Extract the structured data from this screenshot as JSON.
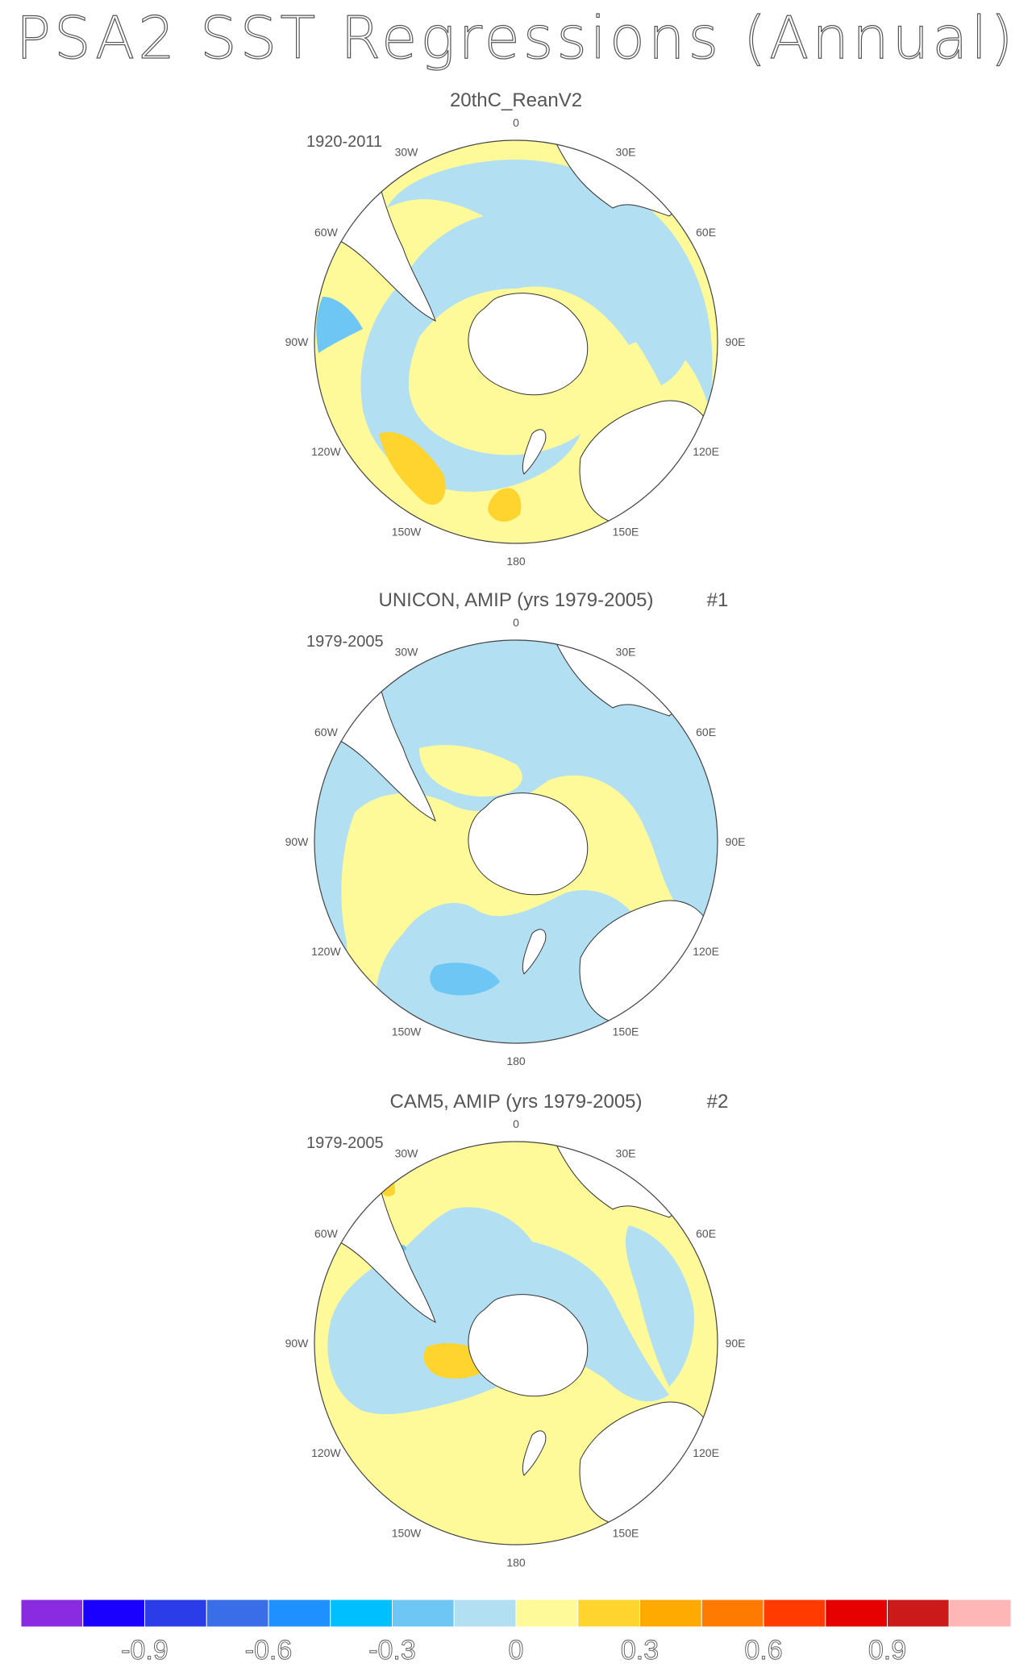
{
  "title": "PSA2 SST Regressions (Annual)",
  "panels": [
    {
      "name": "20thC_ReanV2",
      "period": "1920-2011",
      "number": "",
      "lon_labels": [
        "0",
        "30E",
        "60E",
        "90E",
        "120E",
        "150E",
        "180",
        "150W",
        "120W",
        "90W",
        "60W",
        "30W"
      ]
    },
    {
      "name": "UNICON, AMIP (yrs 1979-2005)",
      "period": "1979-2005",
      "number": "#1",
      "lon_labels": [
        "0",
        "30E",
        "60E",
        "90E",
        "120E",
        "150E",
        "180",
        "150W",
        "120W",
        "90W",
        "60W",
        "30W"
      ]
    },
    {
      "name": "CAM5, AMIP (yrs 1979-2005)",
      "period": "1979-2005",
      "number": "#2",
      "lon_labels": [
        "0",
        "30E",
        "60E",
        "90E",
        "120E",
        "150E",
        "180",
        "150W",
        "120W",
        "90W",
        "60W",
        "30W"
      ]
    }
  ],
  "colorbar": {
    "colors": [
      "#8a2be2",
      "#1a00ff",
      "#2a3de8",
      "#3a6ee8",
      "#1e90ff",
      "#00bfff",
      "#6ec6f5",
      "#b3dff2",
      "#fffa99",
      "#ffd42e",
      "#ffaa00",
      "#ff7a00",
      "#ff3b00",
      "#e60000",
      "#cc1a1a",
      "#ffb6b6"
    ],
    "tick_labels": [
      "-0.9",
      "-0.6",
      "-0.3",
      "0",
      "0.3",
      "0.6",
      "0.9"
    ]
  },
  "palette": {
    "ocean_negative": "#b3dff2",
    "ocean_positive": "#fffa99",
    "strong_negative": "#6ec6f5",
    "strong_positive": "#ffd42e",
    "land": "#ffffff"
  }
}
